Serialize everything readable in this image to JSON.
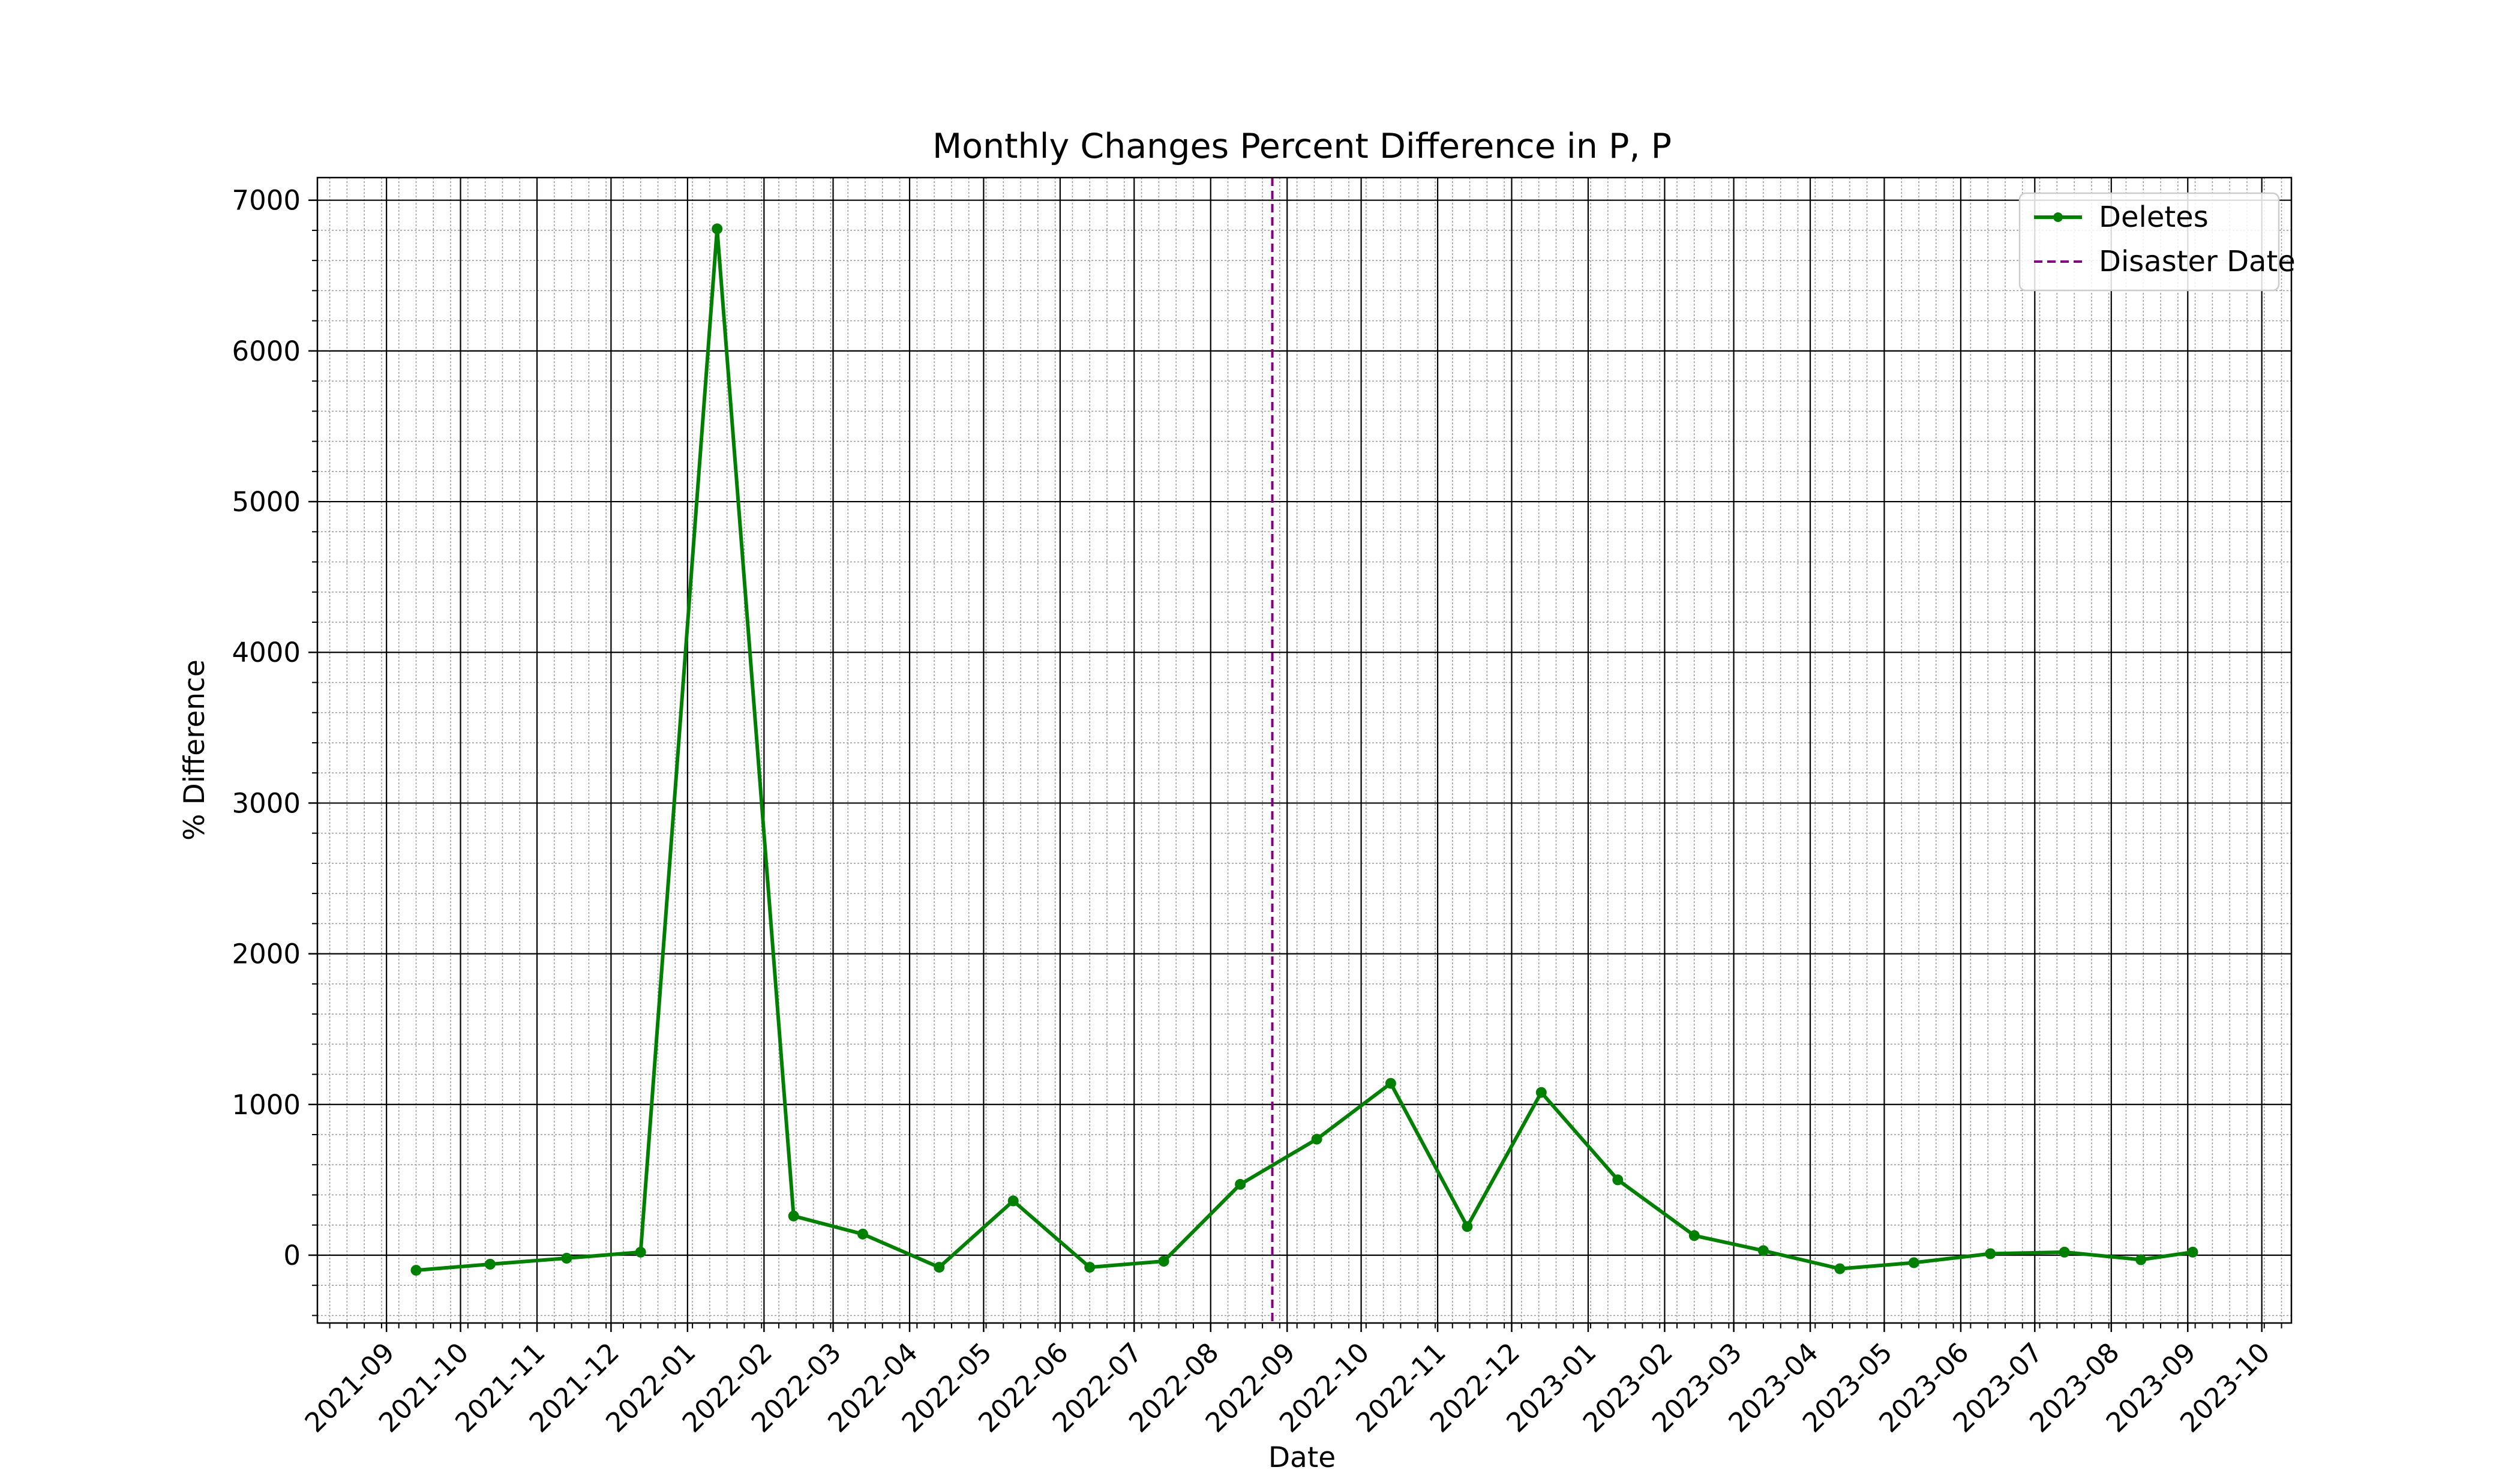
{
  "chart_data": {
    "type": "line",
    "title": "Monthly Changes Percent Difference in P, P",
    "xlabel": "Date",
    "ylabel": "% Difference",
    "x_ticks": [
      "2021-09",
      "2021-10",
      "2021-11",
      "2021-12",
      "2022-01",
      "2022-02",
      "2022-03",
      "2022-04",
      "2022-05",
      "2022-06",
      "2022-07",
      "2022-08",
      "2022-09",
      "2022-10",
      "2022-11",
      "2022-12",
      "2023-01",
      "2023-02",
      "2023-03",
      "2023-04",
      "2023-05",
      "2023-06",
      "2023-07",
      "2023-08",
      "2023-09",
      "2023-10"
    ],
    "y_ticks": [
      0,
      1000,
      2000,
      3000,
      4000,
      5000,
      6000,
      7000
    ],
    "ylim": [
      -450,
      7150
    ],
    "xlim": [
      "2021-08-04",
      "2023-10-13"
    ],
    "grid": true,
    "minor_grid": true,
    "legend_position": "top-right",
    "series": [
      {
        "name": "Deletes",
        "color": "#008000",
        "marker": "circle",
        "x": [
          "2021-09-13",
          "2021-10-13",
          "2021-11-13",
          "2021-12-13",
          "2022-01-13",
          "2022-02-13",
          "2022-03-13",
          "2022-04-13",
          "2022-05-13",
          "2022-06-13",
          "2022-07-13",
          "2022-08-13",
          "2022-09-13",
          "2022-10-13",
          "2022-11-13",
          "2022-12-13",
          "2023-01-13",
          "2023-02-13",
          "2023-03-13",
          "2023-04-13",
          "2023-05-13",
          "2023-06-13",
          "2023-07-13",
          "2023-08-13",
          "2023-09-03"
        ],
        "values": [
          -100,
          -60,
          -20,
          20,
          6810,
          260,
          140,
          -80,
          360,
          -80,
          -40,
          470,
          770,
          1140,
          190,
          1080,
          500,
          130,
          30,
          -90,
          -50,
          10,
          20,
          -30,
          20
        ]
      }
    ],
    "annotations": [
      {
        "name": "Disaster Date",
        "type": "vline",
        "x": "2022-08-26",
        "color": "#800080",
        "style": "dashed"
      }
    ]
  }
}
